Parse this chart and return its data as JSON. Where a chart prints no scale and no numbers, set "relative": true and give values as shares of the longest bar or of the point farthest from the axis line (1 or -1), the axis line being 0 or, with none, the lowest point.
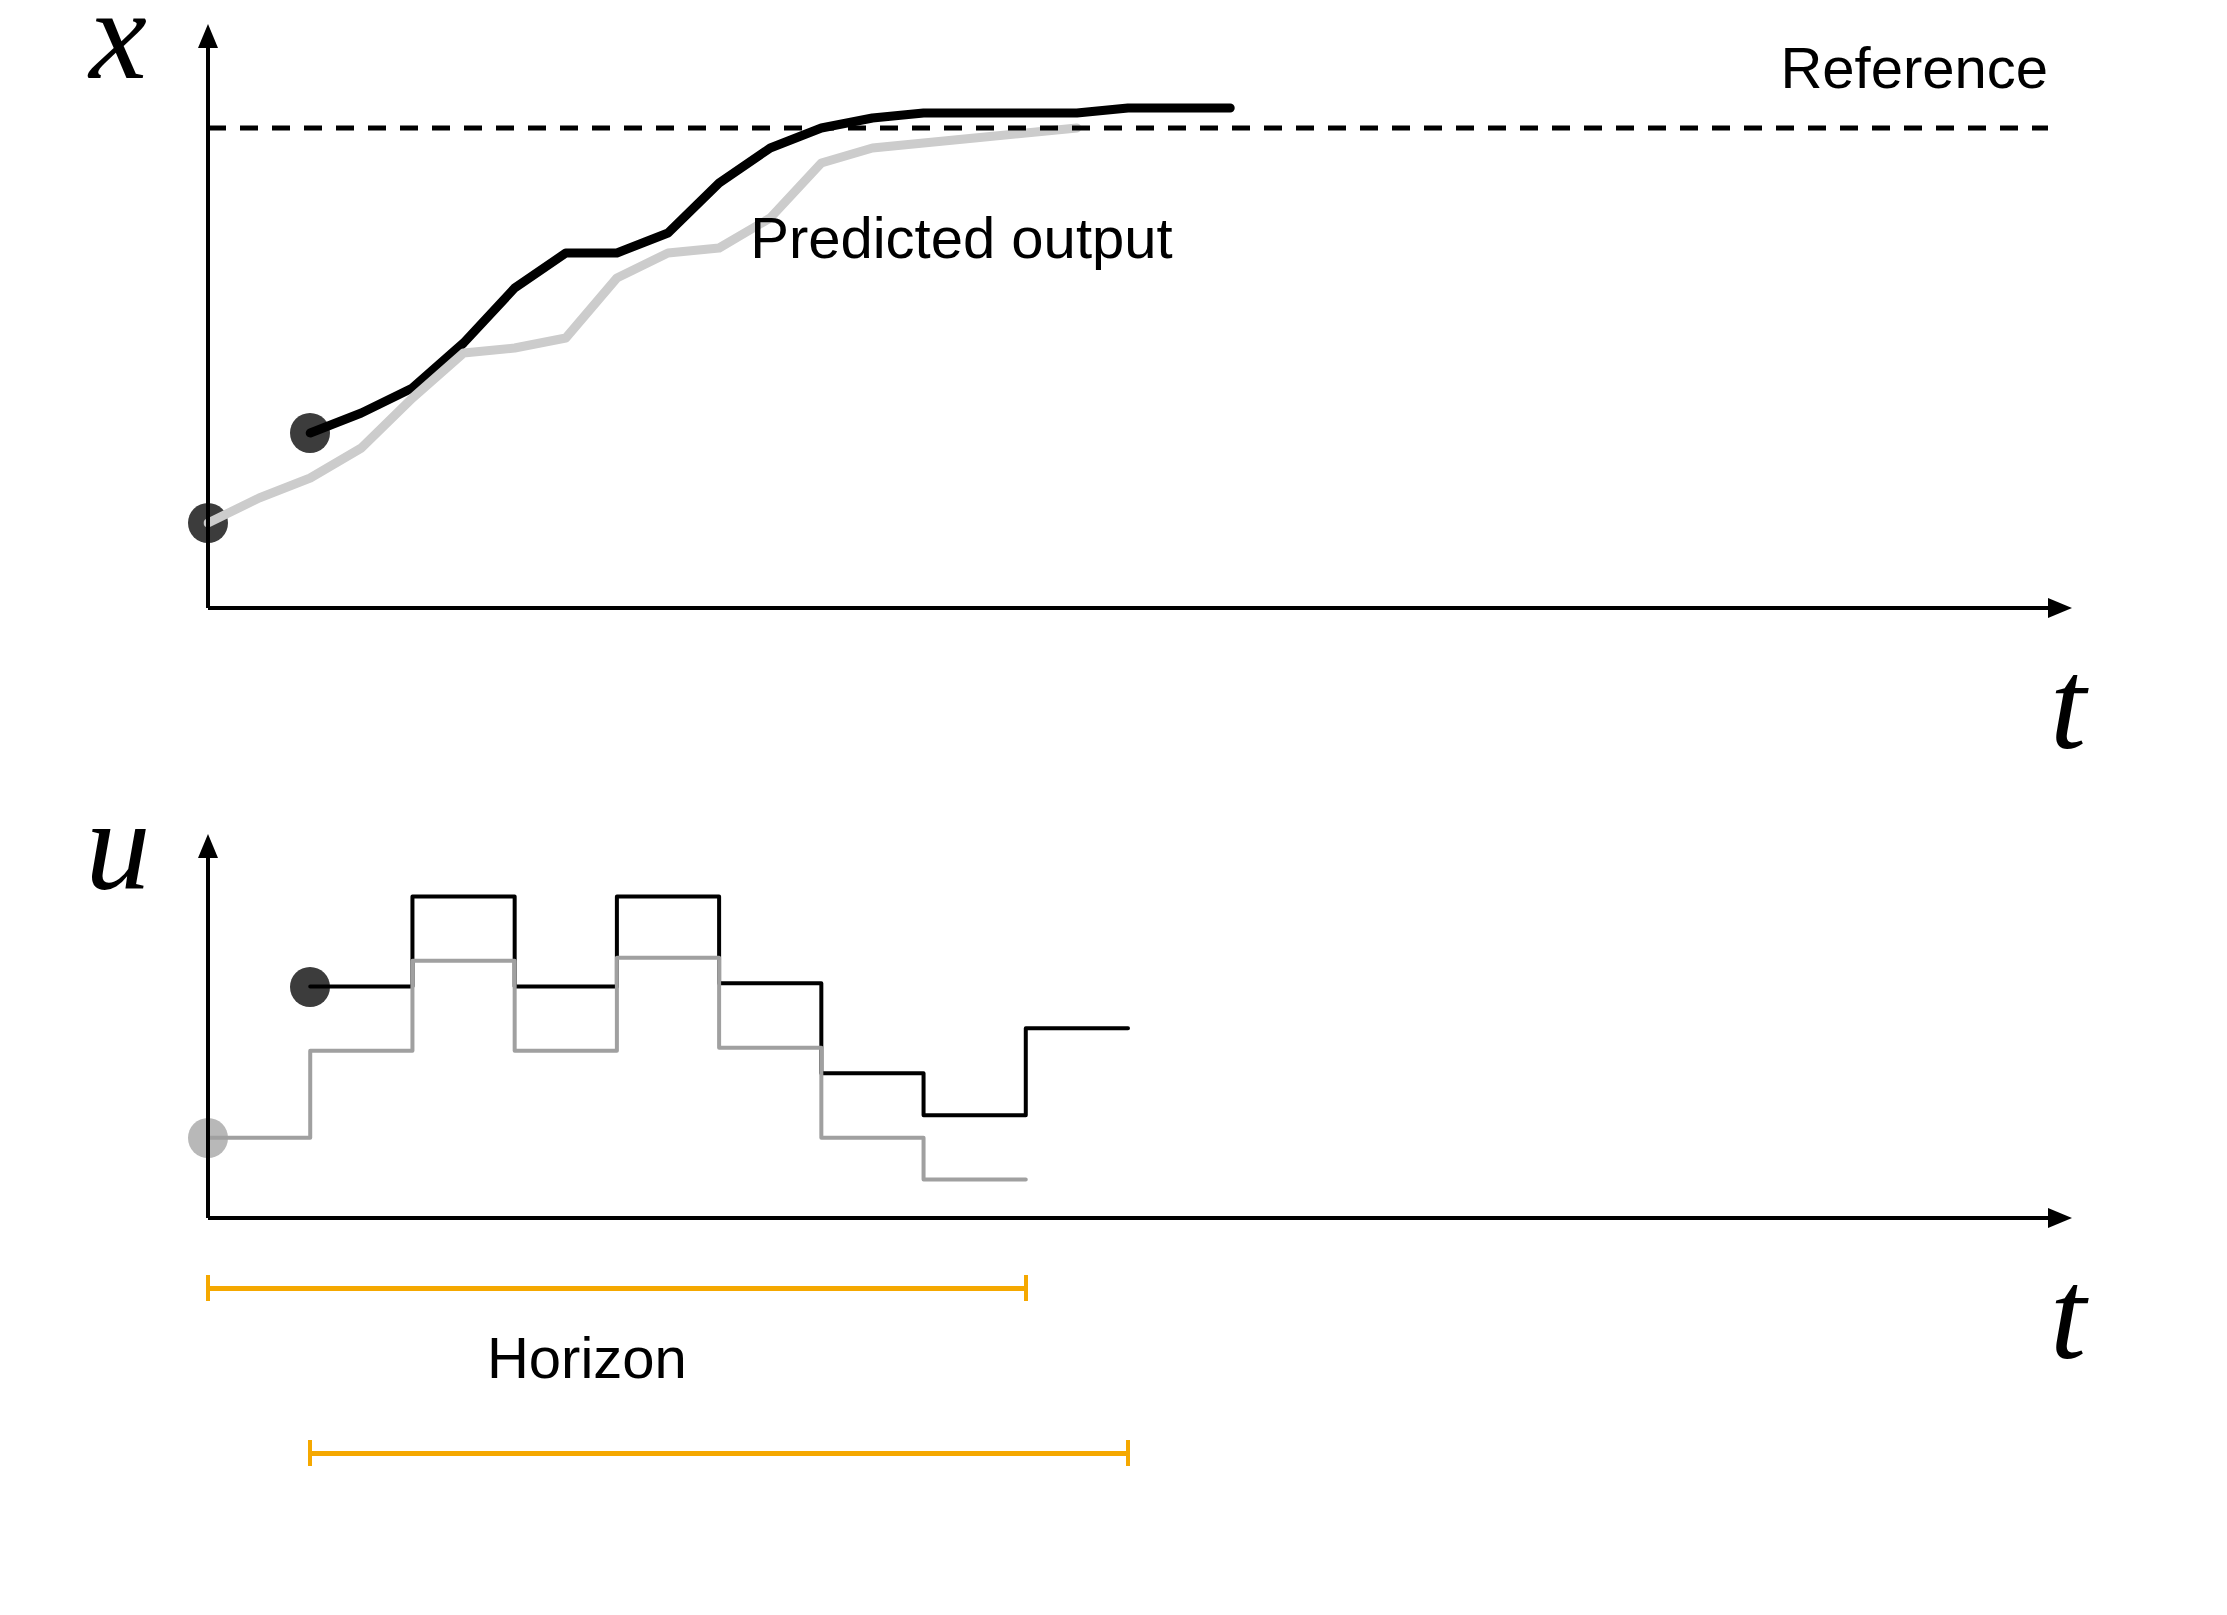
{
  "chart_data": [
    {
      "type": "line",
      "relative": true,
      "ylabel": "x",
      "xlabel": "t",
      "legend": false,
      "tick_labels": false,
      "line_style": "solid",
      "categories": [
        null,
        null,
        null,
        null,
        null,
        null,
        null,
        null,
        null,
        null,
        null,
        null,
        null,
        null,
        null,
        null,
        null,
        null,
        null,
        null,
        null,
        null,
        null,
        null,
        null,
        null,
        null,
        null,
        null,
        null,
        null,
        null,
        null,
        null,
        null,
        null,
        null
      ],
      "series": [
        {
          "color": "#cccccc",
          "values": [
            0.17,
            0.22,
            0.26,
            0.32,
            0.42,
            0.51,
            0.52,
            0.54,
            0.66,
            0.71,
            0.72,
            0.78,
            0.89,
            0.92,
            0.93,
            0.94,
            0.95,
            0.96,
            null,
            null,
            null,
            null,
            null,
            null,
            null,
            null,
            null,
            null,
            null,
            null,
            null,
            null,
            null,
            null,
            null,
            null,
            null
          ]
        },
        {
          "name": "Predicted output",
          "color": "#000000",
          "values": [
            null,
            null,
            0.35,
            0.39,
            0.44,
            0.53,
            0.64,
            0.71,
            0.71,
            0.75,
            0.85,
            0.92,
            0.96,
            0.98,
            0.99,
            0.99,
            0.99,
            0.99,
            1,
            1,
            1,
            null,
            null,
            null,
            null,
            null,
            null,
            null,
            null,
            null,
            null,
            null,
            null,
            null,
            null,
            null,
            null
          ]
        }
      ],
      "ref_lines": [
        {
          "axis": "y",
          "value": 0.96,
          "label": "Reference",
          "line_style": "dashed",
          "color": "#000000"
        }
      ]
    },
    {
      "type": "step",
      "relative": true,
      "ylabel": "u",
      "xlabel": "t",
      "legend": false,
      "tick_labels": false,
      "line_style": "solid",
      "categories": [
        null,
        null,
        null,
        null,
        null,
        null,
        null,
        null,
        null,
        null,
        null,
        null,
        null,
        null,
        null,
        null,
        null,
        null,
        null
      ],
      "series": [
        {
          "color": "#a0a0a0",
          "values": [
            0.25,
            0.52,
            0.8,
            0.52,
            0.81,
            0.53,
            0.25,
            0.12,
            0.12,
            null,
            null,
            null,
            null,
            null,
            null,
            null,
            null,
            null,
            null
          ]
        },
        {
          "color": "#000000",
          "values": [
            null,
            0.72,
            1,
            0.72,
            1,
            0.73,
            0.45,
            0.32,
            0.59,
            0.59,
            null,
            null,
            null,
            null,
            null,
            null,
            null,
            null,
            null
          ]
        }
      ],
      "annotations": [
        "Horizon"
      ]
    }
  ]
}
